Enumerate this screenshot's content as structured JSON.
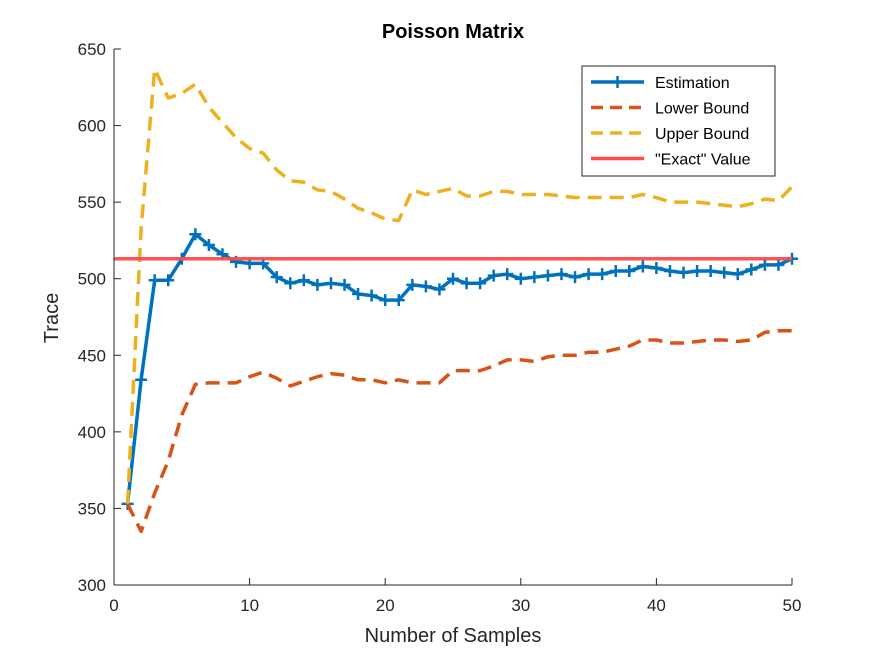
{
  "chart_data": {
    "type": "line",
    "title": "Poisson Matrix",
    "xlabel": "Number of Samples",
    "ylabel": "Trace",
    "xlim": [
      0,
      50
    ],
    "ylim": [
      300,
      650
    ],
    "xticks": [
      0,
      10,
      20,
      30,
      40,
      50
    ],
    "yticks": [
      300,
      350,
      400,
      450,
      500,
      550,
      600,
      650
    ],
    "grid": false,
    "legend_position": "top-right",
    "series": [
      {
        "name": "Estimation",
        "color": "#0072BD",
        "style": "solid-with-plus-markers",
        "x": [
          1,
          2,
          3,
          4,
          5,
          6,
          7,
          8,
          9,
          10,
          11,
          12,
          13,
          14,
          15,
          16,
          17,
          18,
          19,
          20,
          21,
          22,
          23,
          24,
          25,
          26,
          27,
          28,
          29,
          30,
          31,
          32,
          33,
          34,
          35,
          36,
          37,
          38,
          39,
          40,
          41,
          42,
          43,
          44,
          45,
          46,
          47,
          48,
          49,
          50
        ],
        "values": [
          353,
          434,
          499,
          499,
          513,
          529,
          522,
          516,
          511,
          510,
          510,
          501,
          497,
          499,
          496,
          497,
          496,
          490,
          489,
          486,
          486,
          496,
          495,
          493,
          500,
          497,
          497,
          502,
          503,
          500,
          501,
          502,
          503,
          501,
          503,
          503,
          505,
          505,
          508,
          507,
          505,
          504,
          505,
          505,
          504,
          503,
          506,
          509,
          509,
          513
        ]
      },
      {
        "name": "Lower Bound",
        "color": "#D95319",
        "style": "dashed",
        "x": [
          1,
          2,
          3,
          4,
          5,
          6,
          7,
          8,
          9,
          10,
          11,
          12,
          13,
          14,
          15,
          16,
          17,
          18,
          19,
          20,
          21,
          22,
          23,
          24,
          25,
          26,
          27,
          28,
          29,
          30,
          31,
          32,
          33,
          34,
          35,
          36,
          37,
          38,
          39,
          40,
          41,
          42,
          43,
          44,
          45,
          46,
          47,
          48,
          49,
          50
        ],
        "values": [
          353,
          335,
          360,
          381,
          411,
          431,
          432,
          432,
          432,
          436,
          439,
          435,
          430,
          433,
          436,
          438,
          437,
          434,
          434,
          432,
          434,
          432,
          432,
          432,
          440,
          440,
          440,
          443,
          447,
          447,
          446,
          449,
          450,
          450,
          452,
          452,
          454,
          456,
          460,
          460,
          458,
          458,
          459,
          460,
          460,
          459,
          460,
          465,
          466,
          466
        ]
      },
      {
        "name": "Upper Bound",
        "color": "#EDB120",
        "style": "dashed",
        "x": [
          1,
          2,
          3,
          4,
          5,
          6,
          7,
          8,
          9,
          10,
          11,
          12,
          13,
          14,
          15,
          16,
          17,
          18,
          19,
          20,
          21,
          22,
          23,
          24,
          25,
          26,
          27,
          28,
          29,
          30,
          31,
          32,
          33,
          34,
          35,
          36,
          37,
          38,
          39,
          40,
          41,
          42,
          43,
          44,
          45,
          46,
          47,
          48,
          49,
          50
        ],
        "values": [
          353,
          533,
          637,
          618,
          621,
          627,
          612,
          602,
          592,
          585,
          582,
          571,
          564,
          563,
          558,
          557,
          552,
          546,
          543,
          539,
          538,
          558,
          555,
          557,
          559,
          554,
          554,
          557,
          557,
          555,
          555,
          555,
          554,
          553,
          553,
          553,
          553,
          553,
          555,
          553,
          550,
          550,
          550,
          549,
          548,
          547,
          549,
          552,
          551,
          560
        ]
      },
      {
        "name": "\"Exact\" Value",
        "color": "#FF4B4B",
        "style": "solid",
        "x": [
          0,
          50
        ],
        "values": [
          513,
          513
        ]
      }
    ]
  }
}
